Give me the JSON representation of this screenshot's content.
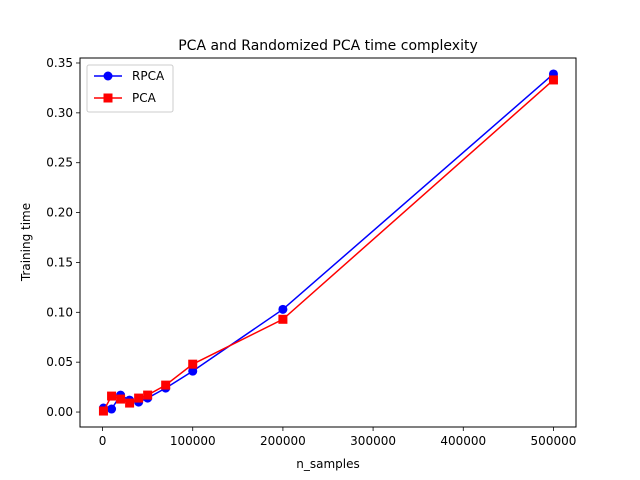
{
  "chart_data": {
    "type": "line",
    "title": "PCA and Randomized PCA time complexity",
    "xlabel": "n_samples",
    "ylabel": "Training time",
    "xlim": [
      -25000,
      525000
    ],
    "ylim": [
      -0.015,
      0.355
    ],
    "xticks": [
      0,
      100000,
      200000,
      300000,
      400000,
      500000
    ],
    "xtick_labels": [
      "0",
      "100000",
      "200000",
      "300000",
      "400000",
      "500000"
    ],
    "yticks": [
      0.0,
      0.05,
      0.1,
      0.15,
      0.2,
      0.25,
      0.3,
      0.35
    ],
    "ytick_labels": [
      "0.00",
      "0.05",
      "0.10",
      "0.15",
      "0.20",
      "0.25",
      "0.30",
      "0.35"
    ],
    "grid": false,
    "legend_position": "top-left",
    "series": [
      {
        "name": "RPCA",
        "color": "#0000ff",
        "marker": "circle",
        "x": [
          1000,
          10000,
          20000,
          30000,
          40000,
          50000,
          70000,
          100000,
          200000,
          500000
        ],
        "y": [
          0.004,
          0.003,
          0.017,
          0.012,
          0.01,
          0.014,
          0.024,
          0.041,
          0.103,
          0.339
        ]
      },
      {
        "name": "PCA",
        "color": "#ff0000",
        "marker": "square",
        "x": [
          1000,
          10000,
          20000,
          30000,
          40000,
          50000,
          70000,
          100000,
          200000,
          500000
        ],
        "y": [
          0.001,
          0.016,
          0.013,
          0.009,
          0.014,
          0.017,
          0.027,
          0.048,
          0.093,
          0.333
        ]
      }
    ]
  }
}
